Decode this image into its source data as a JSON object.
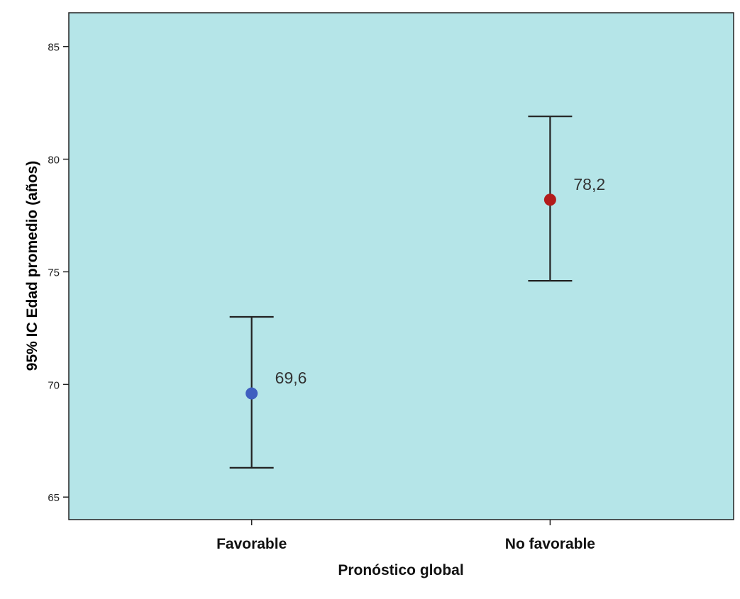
{
  "chart_data": {
    "type": "errorbar",
    "title": "",
    "xlabel": "Pronóstico global",
    "ylabel": "95% IC Edad promedio (años)",
    "ylim": [
      64,
      86.5
    ],
    "yticks": [
      65,
      70,
      75,
      80,
      85
    ],
    "ytick_labels": [
      "65",
      "70",
      "75",
      "80",
      "85"
    ],
    "grid": false,
    "legend": "none",
    "plot_background": "#b5e5e8",
    "categories": [
      "Favorable",
      "No favorable"
    ],
    "means": [
      69.6,
      78.2
    ],
    "mean_labels": [
      "69,6",
      "78,2"
    ],
    "ci_lower": [
      66.3,
      74.6
    ],
    "ci_upper": [
      73.0,
      81.9
    ],
    "point_colors": [
      "#3f5fc0",
      "#b31b1b"
    ],
    "errorbar_color": "#222222"
  }
}
